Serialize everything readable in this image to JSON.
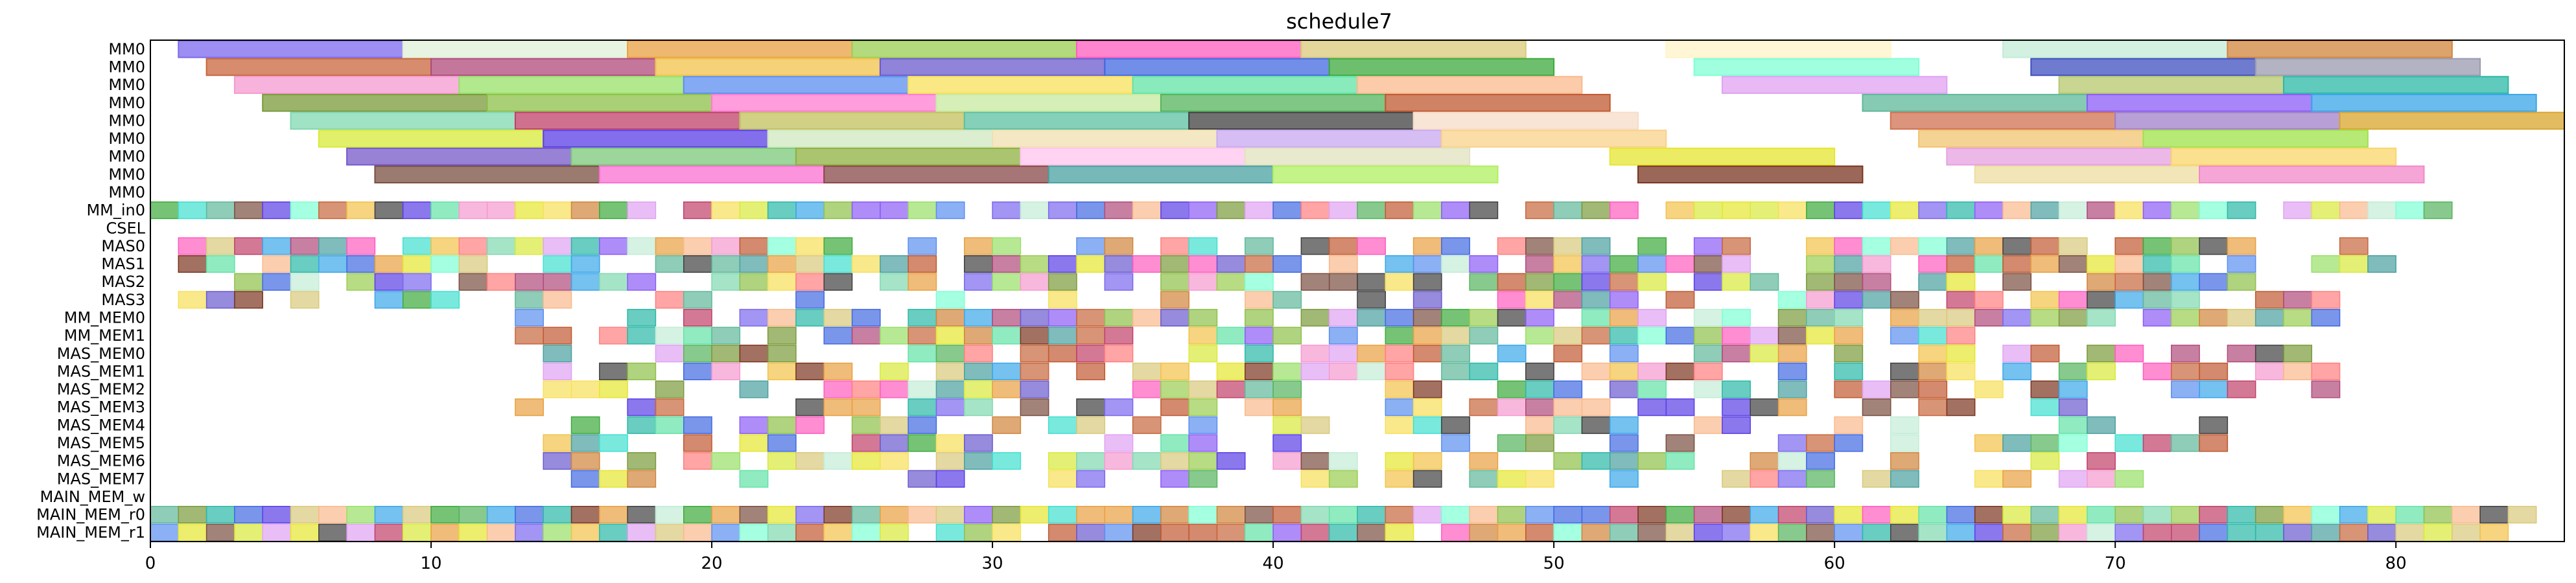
{
  "chart_data": {
    "type": "gantt",
    "title": "schedule7",
    "xlim": [
      0,
      86
    ],
    "xticks": [
      0,
      10,
      20,
      30,
      40,
      50,
      60,
      70,
      80
    ],
    "rows": [
      "MM0",
      "MM0",
      "MM0",
      "MM0",
      "MM0",
      "MM0",
      "MM0",
      "MM0",
      "MM0",
      "MM_in0",
      "CSEL",
      "MAS0",
      "MAS1",
      "MAS2",
      "MAS3",
      "MM_MEM0",
      "MM_MEM1",
      "MAS_MEM0",
      "MAS_MEM1",
      "MAS_MEM2",
      "MAS_MEM3",
      "MAS_MEM4",
      "MAS_MEM5",
      "MAS_MEM6",
      "MAS_MEM7",
      "MAIN_MEM_w",
      "MAIN_MEM_r0",
      "MAIN_MEM_r1"
    ],
    "bars": [
      {
        "row": 0,
        "start": 1,
        "end": 9,
        "color": "#7b68ee"
      },
      {
        "row": 0,
        "start": 9,
        "end": 17,
        "color": "#e0f0d8"
      },
      {
        "row": 0,
        "start": 17,
        "end": 25,
        "color": "#e9a040"
      },
      {
        "row": 0,
        "start": 25,
        "end": 33,
        "color": "#9acd50"
      },
      {
        "row": 0,
        "start": 33,
        "end": 41,
        "color": "#ff5cbf"
      },
      {
        "row": 0,
        "start": 41,
        "end": 49,
        "color": "#d9c97a"
      },
      {
        "row": 0,
        "start": 54,
        "end": 62,
        "color": "#fff3c8"
      },
      {
        "row": 0,
        "start": 66,
        "end": 74,
        "color": "#c3ecd7"
      },
      {
        "row": 0,
        "start": 74,
        "end": 82,
        "color": "#d2843c"
      },
      {
        "row": 1,
        "start": 2,
        "end": 10,
        "color": "#c8663c"
      },
      {
        "row": 1,
        "start": 10,
        "end": 18,
        "color": "#b04a7a"
      },
      {
        "row": 1,
        "start": 18,
        "end": 26,
        "color": "#f2c24a"
      },
      {
        "row": 1,
        "start": 26,
        "end": 34,
        "color": "#6a5acd"
      },
      {
        "row": 1,
        "start": 34,
        "end": 42,
        "color": "#4169e1"
      },
      {
        "row": 1,
        "start": 42,
        "end": 50,
        "color": "#3caa3c"
      },
      {
        "row": 1,
        "start": 55,
        "end": 63,
        "color": "#7fffd4"
      },
      {
        "row": 1,
        "start": 67,
        "end": 75,
        "color": "#3d4fbf"
      },
      {
        "row": 1,
        "start": 75,
        "end": 83,
        "color": "#9a9ab0"
      },
      {
        "row": 2,
        "start": 3,
        "end": 11,
        "color": "#f59ad0"
      },
      {
        "row": 2,
        "start": 11,
        "end": 19,
        "color": "#98e068"
      },
      {
        "row": 2,
        "start": 19,
        "end": 27,
        "color": "#5b8ef0"
      },
      {
        "row": 2,
        "start": 27,
        "end": 35,
        "color": "#f7e05a"
      },
      {
        "row": 2,
        "start": 35,
        "end": 43,
        "color": "#62e3a6"
      },
      {
        "row": 2,
        "start": 43,
        "end": 51,
        "color": "#f9b98d"
      },
      {
        "row": 2,
        "start": 56,
        "end": 64,
        "color": "#e0a2f2"
      },
      {
        "row": 2,
        "start": 68,
        "end": 76,
        "color": "#b5c86e"
      },
      {
        "row": 2,
        "start": 76,
        "end": 84,
        "color": "#2bb8a6"
      },
      {
        "row": 3,
        "start": 4,
        "end": 12,
        "color": "#7a9a3a"
      },
      {
        "row": 3,
        "start": 12,
        "end": 20,
        "color": "#8ec04a"
      },
      {
        "row": 3,
        "start": 20,
        "end": 28,
        "color": "#ff7cd1"
      },
      {
        "row": 3,
        "start": 28,
        "end": 36,
        "color": "#c8eaa0"
      },
      {
        "row": 3,
        "start": 36,
        "end": 44,
        "color": "#56b45c"
      },
      {
        "row": 3,
        "start": 44,
        "end": 52,
        "color": "#c05830"
      },
      {
        "row": 3,
        "start": 61,
        "end": 69,
        "color": "#5fb89a"
      },
      {
        "row": 3,
        "start": 69,
        "end": 77,
        "color": "#8b5cf6"
      },
      {
        "row": 3,
        "start": 77,
        "end": 85,
        "color": "#3aa6e8"
      },
      {
        "row": 4,
        "start": 5,
        "end": 13,
        "color": "#80d8b0"
      },
      {
        "row": 4,
        "start": 13,
        "end": 21,
        "color": "#c0406a"
      },
      {
        "row": 4,
        "start": 21,
        "end": 29,
        "color": "#c2c05c"
      },
      {
        "row": 4,
        "start": 29,
        "end": 37,
        "color": "#5cc0a0"
      },
      {
        "row": 4,
        "start": 37,
        "end": 45,
        "color": "#404040"
      },
      {
        "row": 4,
        "start": 45,
        "end": 53,
        "color": "#f7dcc8"
      },
      {
        "row": 4,
        "start": 62,
        "end": 70,
        "color": "#d07050"
      },
      {
        "row": 4,
        "start": 70,
        "end": 78,
        "color": "#a080c8"
      },
      {
        "row": 4,
        "start": 78,
        "end": 86,
        "color": "#d9a52e"
      },
      {
        "row": 5,
        "start": 6,
        "end": 14,
        "color": "#d8ea3a"
      },
      {
        "row": 5,
        "start": 14,
        "end": 22,
        "color": "#5a3ee6"
      },
      {
        "row": 5,
        "start": 22,
        "end": 30,
        "color": "#cfe8c0"
      },
      {
        "row": 5,
        "start": 30,
        "end": 38,
        "color": "#f0e0b0"
      },
      {
        "row": 5,
        "start": 38,
        "end": 46,
        "color": "#c8a8f0"
      },
      {
        "row": 5,
        "start": 46,
        "end": 54,
        "color": "#f9d18a"
      },
      {
        "row": 5,
        "start": 63,
        "end": 71,
        "color": "#f2c470"
      },
      {
        "row": 5,
        "start": 71,
        "end": 79,
        "color": "#9fe24a"
      },
      {
        "row": 6,
        "start": 7,
        "end": 15,
        "color": "#7658c8"
      },
      {
        "row": 6,
        "start": 15,
        "end": 23,
        "color": "#7cc87a"
      },
      {
        "row": 6,
        "start": 23,
        "end": 31,
        "color": "#8eb040"
      },
      {
        "row": 6,
        "start": 31,
        "end": 39,
        "color": "#ffc4ec"
      },
      {
        "row": 6,
        "start": 39,
        "end": 47,
        "color": "#e2e2c0"
      },
      {
        "row": 6,
        "start": 52,
        "end": 60,
        "color": "#e6e630"
      },
      {
        "row": 6,
        "start": 64,
        "end": 72,
        "color": "#e6a0e0"
      },
      {
        "row": 6,
        "start": 72,
        "end": 80,
        "color": "#f9d66a"
      },
      {
        "row": 7,
        "start": 8,
        "end": 16,
        "color": "#7a4e40"
      },
      {
        "row": 7,
        "start": 16,
        "end": 24,
        "color": "#f970d2"
      },
      {
        "row": 7,
        "start": 24,
        "end": 32,
        "color": "#884848"
      },
      {
        "row": 7,
        "start": 32,
        "end": 40,
        "color": "#4aa0a0"
      },
      {
        "row": 7,
        "start": 40,
        "end": 48,
        "color": "#b0ef60"
      },
      {
        "row": 7,
        "start": 53,
        "end": 61,
        "color": "#7a3420"
      },
      {
        "row": 7,
        "start": 65,
        "end": 73,
        "color": "#eedda0"
      },
      {
        "row": 7,
        "start": 73,
        "end": 81,
        "color": "#f288c8"
      }
    ],
    "grid": false,
    "xlabel": "",
    "ylabel": ""
  }
}
